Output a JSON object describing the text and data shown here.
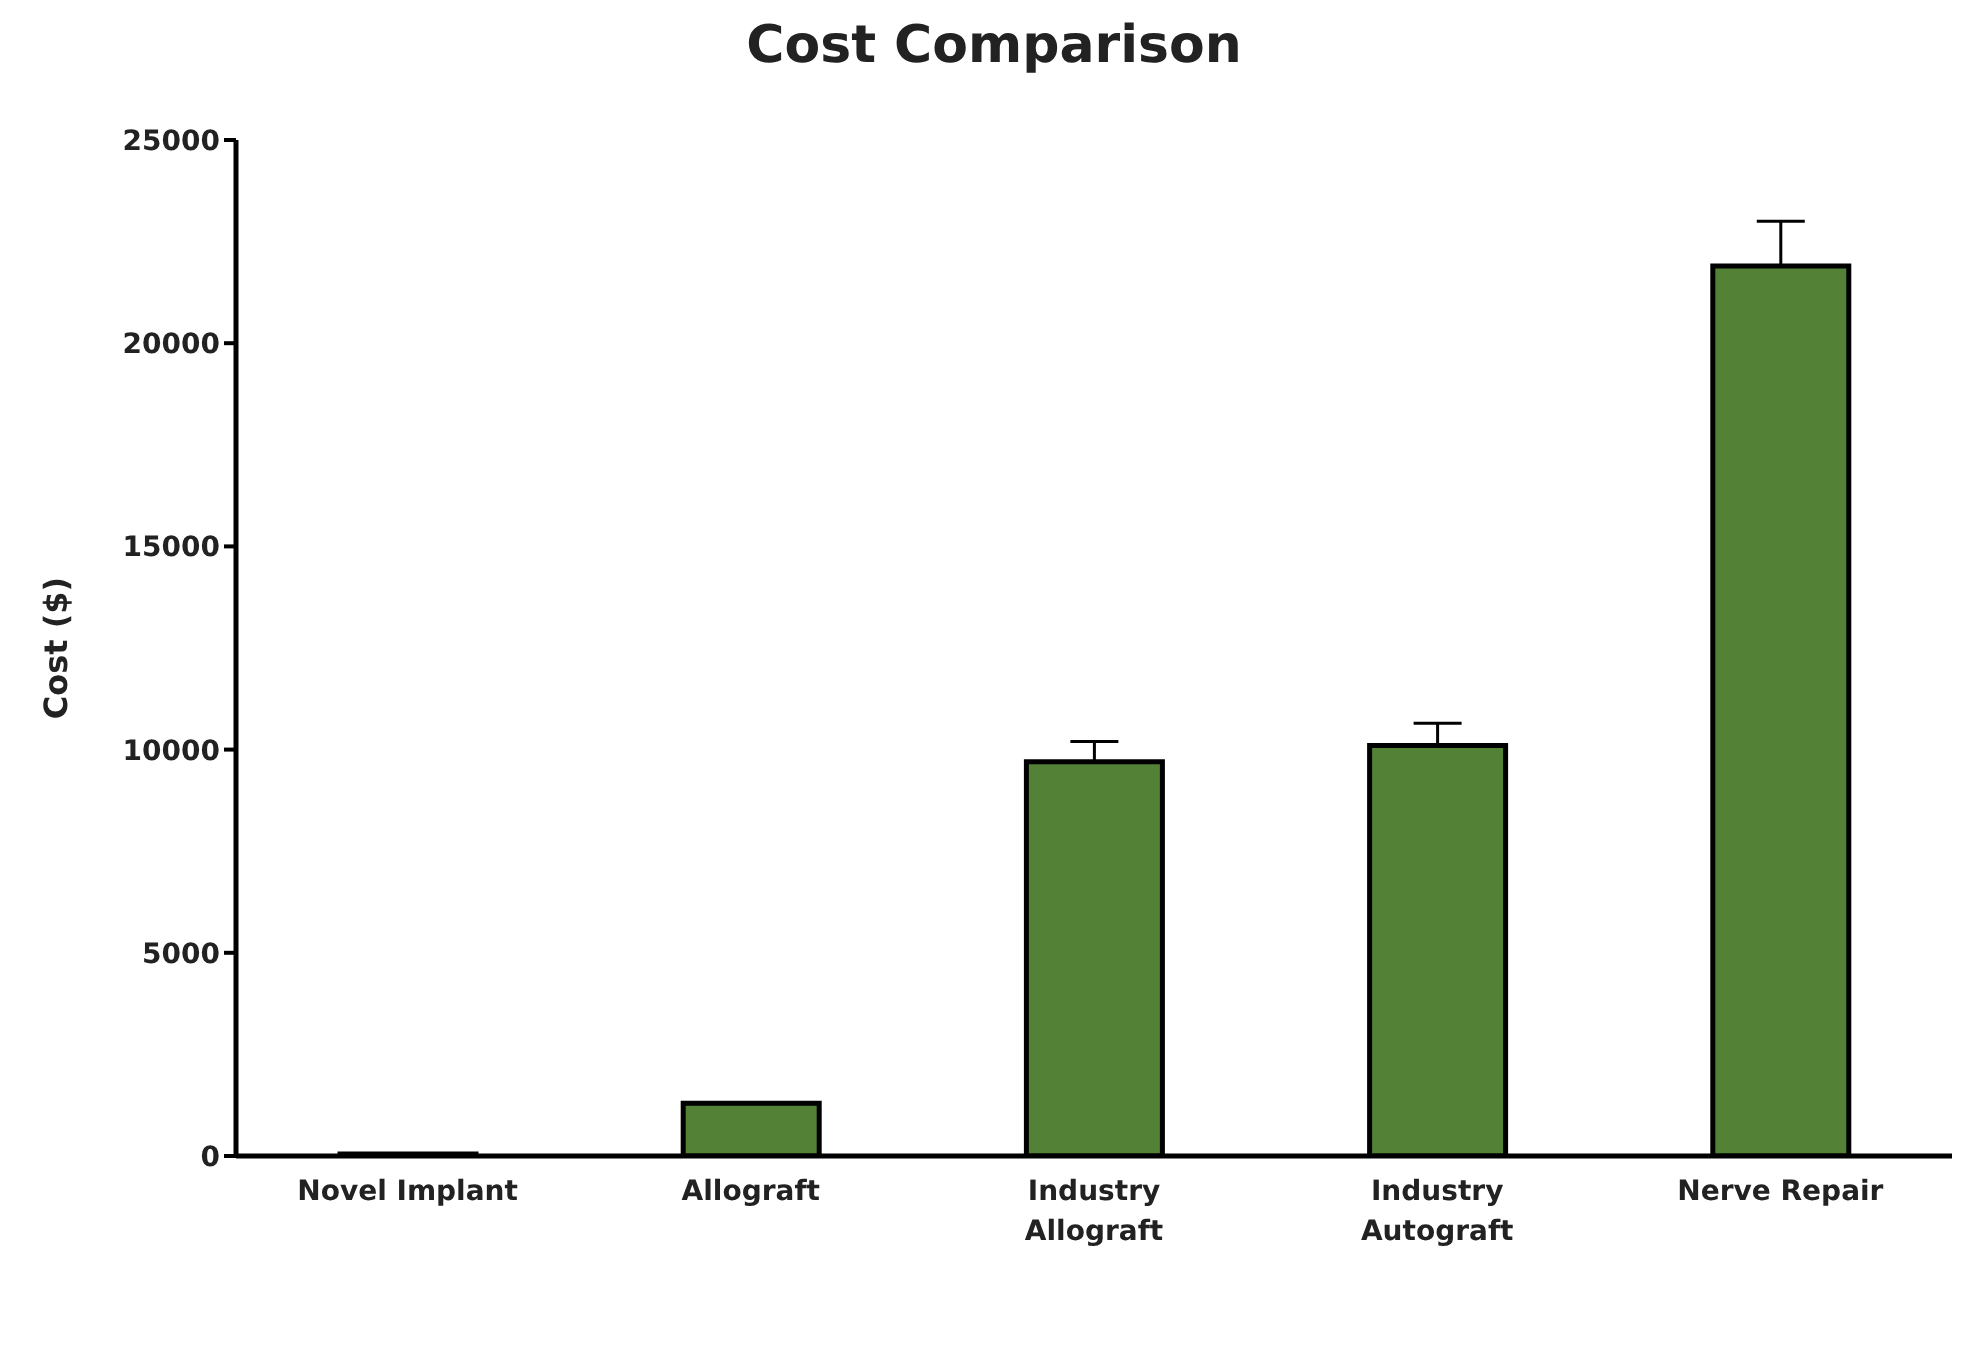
{
  "chart_data": {
    "type": "bar",
    "title": "Cost Comparison",
    "ylabel": "Cost ($)",
    "categories": [
      "Novel Implant",
      "Allograft",
      "Industry Allograft",
      "Industry Autograft",
      "Nerve Repair"
    ],
    "values": [
      50,
      1300,
      9700,
      10100,
      21900
    ],
    "errors": [
      null,
      null,
      [
        9700,
        10200
      ],
      [
        10100,
        10650
      ],
      [
        21900,
        23000
      ]
    ],
    "color": "#538135",
    "ylim": [
      0,
      25000
    ],
    "yticks": [
      0,
      5000,
      10000,
      15000,
      20000,
      25000
    ],
    "grid": false,
    "legend": false
  }
}
